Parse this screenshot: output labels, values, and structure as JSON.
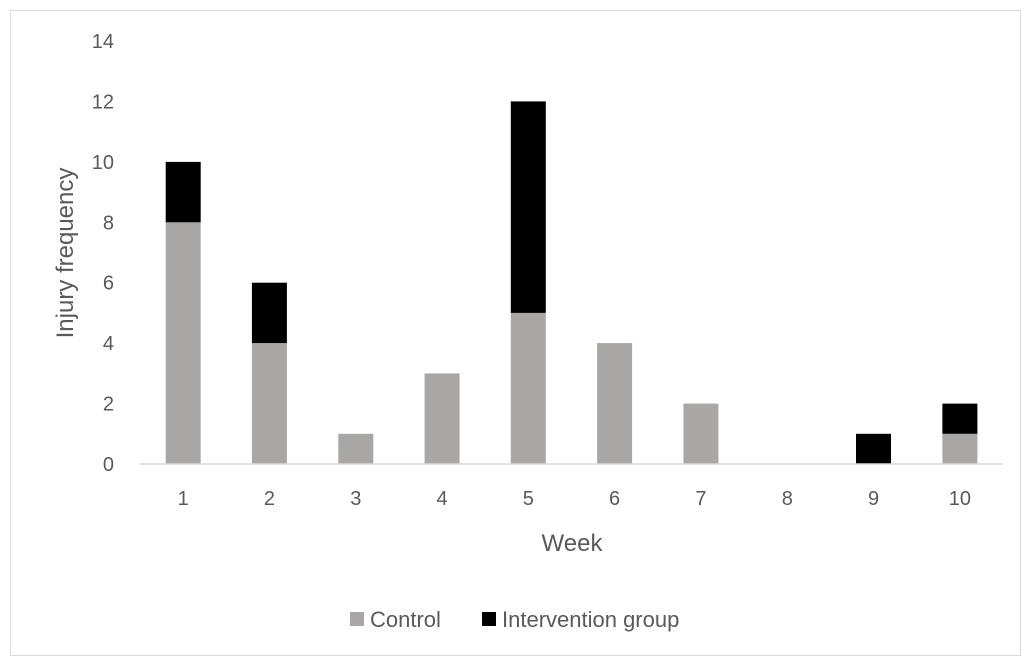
{
  "chart_data": {
    "type": "bar",
    "stacked": true,
    "xlabel": "Week",
    "ylabel": "Injury frequency",
    "categories": [
      "1",
      "2",
      "3",
      "4",
      "5",
      "6",
      "7",
      "8",
      "9",
      "10"
    ],
    "ylim": [
      0,
      14
    ],
    "yticks": [
      "0",
      "2",
      "4",
      "6",
      "8",
      "10",
      "12",
      "14"
    ],
    "series": [
      {
        "name": "Control",
        "values": [
          8,
          4,
          1,
          3,
          5,
          4,
          2,
          0,
          0,
          1
        ],
        "color": "#a9a6a6"
      },
      {
        "name": "Intervention group",
        "values": [
          2,
          2,
          0,
          0,
          7,
          0,
          0,
          0,
          1,
          1
        ],
        "color": "#000000"
      }
    ],
    "grid": false,
    "legend_position": "bottom"
  }
}
